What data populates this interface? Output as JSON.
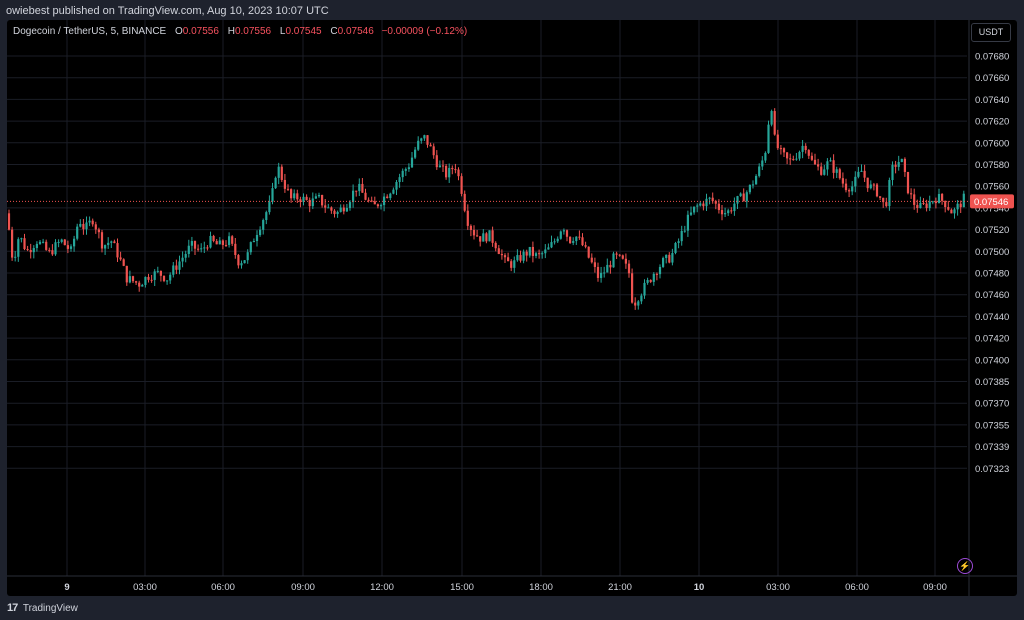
{
  "header": {
    "published": "owiebest published on TradingView.com, Aug 10, 2023 10:07 UTC"
  },
  "legend": {
    "symbol": "Dogecoin / TetherUS, 5, BINANCE",
    "open_label": "O",
    "open": "0.07556",
    "high_label": "H",
    "high": "0.07556",
    "low_label": "L",
    "low": "0.07545",
    "close_label": "C",
    "close": "0.07546",
    "change": "−0.00009 (−0.12%)"
  },
  "currency": "USDT",
  "footer": {
    "brand": "TradingView"
  },
  "chart_data": {
    "type": "candlestick",
    "title": "Dogecoin / TetherUS, 5, BINANCE",
    "last_price": 0.07546,
    "last_price_label": "0.07546",
    "colors": {
      "up": "#26a69a",
      "down": "#ef5350",
      "price_line": "#ef5350",
      "grid": "#1a1d26"
    },
    "y_ticks": [
      "0.07680",
      "0.07660",
      "0.07640",
      "0.07620",
      "0.07600",
      "0.07580",
      "0.07560",
      "0.07540",
      "0.07520",
      "0.07500",
      "0.07480",
      "0.07460",
      "0.07440",
      "0.07420",
      "0.07400",
      "0.07385",
      "0.07370",
      "0.07355",
      "0.07339",
      "0.07323"
    ],
    "x_ticks": [
      {
        "label": "9",
        "bold": true
      },
      {
        "label": "03:00"
      },
      {
        "label": "06:00"
      },
      {
        "label": "09:00"
      },
      {
        "label": "12:00"
      },
      {
        "label": "15:00"
      },
      {
        "label": "18:00"
      },
      {
        "label": "21:00"
      },
      {
        "label": "10",
        "bold": true
      },
      {
        "label": "03:00"
      },
      {
        "label": "06:00"
      },
      {
        "label": "09:00"
      }
    ],
    "price_path": [
      [
        0,
        0.07535
      ],
      [
        6,
        0.0749
      ],
      [
        12,
        0.07515
      ],
      [
        20,
        0.075
      ],
      [
        30,
        0.0751
      ],
      [
        42,
        0.07498
      ],
      [
        54,
        0.0751
      ],
      [
        64,
        0.075
      ],
      [
        72,
        0.0753
      ],
      [
        78,
        0.0752
      ],
      [
        86,
        0.0753
      ],
      [
        96,
        0.07505
      ],
      [
        104,
        0.0751
      ],
      [
        112,
        0.07495
      ],
      [
        120,
        0.07475
      ],
      [
        132,
        0.0747
      ],
      [
        142,
        0.07478
      ],
      [
        152,
        0.0748
      ],
      [
        160,
        0.07475
      ],
      [
        168,
        0.07485
      ],
      [
        176,
        0.07495
      ],
      [
        184,
        0.07505
      ],
      [
        194,
        0.075
      ],
      [
        202,
        0.0751
      ],
      [
        212,
        0.07505
      ],
      [
        222,
        0.0751
      ],
      [
        232,
        0.0749
      ],
      [
        240,
        0.07495
      ],
      [
        248,
        0.07515
      ],
      [
        256,
        0.0753
      ],
      [
        264,
        0.07545
      ],
      [
        270,
        0.0758
      ],
      [
        276,
        0.07565
      ],
      [
        284,
        0.07548
      ],
      [
        292,
        0.0755
      ],
      [
        302,
        0.07545
      ],
      [
        312,
        0.07548
      ],
      [
        320,
        0.0754
      ],
      [
        330,
        0.07535
      ],
      [
        340,
        0.07545
      ],
      [
        350,
        0.0756
      ],
      [
        358,
        0.0755
      ],
      [
        366,
        0.0754
      ],
      [
        372,
        0.07545
      ],
      [
        382,
        0.07555
      ],
      [
        392,
        0.07568
      ],
      [
        402,
        0.0758
      ],
      [
        410,
        0.07598
      ],
      [
        418,
        0.07605
      ],
      [
        426,
        0.0759
      ],
      [
        432,
        0.07578
      ],
      [
        440,
        0.0757
      ],
      [
        448,
        0.0758
      ],
      [
        454,
        0.0756
      ],
      [
        460,
        0.0753
      ],
      [
        466,
        0.07518
      ],
      [
        474,
        0.07512
      ],
      [
        482,
        0.07515
      ],
      [
        490,
        0.07505
      ],
      [
        498,
        0.0749
      ],
      [
        506,
        0.07488
      ],
      [
        514,
        0.07495
      ],
      [
        522,
        0.075
      ],
      [
        530,
        0.07495
      ],
      [
        540,
        0.075
      ],
      [
        548,
        0.0751
      ],
      [
        556,
        0.07525
      ],
      [
        562,
        0.0751
      ],
      [
        568,
        0.07515
      ],
      [
        576,
        0.07505
      ],
      [
        584,
        0.0749
      ],
      [
        592,
        0.07475
      ],
      [
        600,
        0.07485
      ],
      [
        608,
        0.07495
      ],
      [
        616,
        0.0749
      ],
      [
        622,
        0.0748
      ],
      [
        626,
        0.0745
      ],
      [
        632,
        0.0746
      ],
      [
        640,
        0.0747
      ],
      [
        648,
        0.07482
      ],
      [
        656,
        0.0749
      ],
      [
        664,
        0.07495
      ],
      [
        672,
        0.0751
      ],
      [
        680,
        0.07528
      ],
      [
        688,
        0.0754
      ],
      [
        696,
        0.07545
      ],
      [
        704,
        0.07548
      ],
      [
        712,
        0.0754
      ],
      [
        720,
        0.07535
      ],
      [
        728,
        0.07545
      ],
      [
        736,
        0.0755
      ],
      [
        744,
        0.0756
      ],
      [
        752,
        0.07575
      ],
      [
        758,
        0.0759
      ],
      [
        764,
        0.0764
      ],
      [
        768,
        0.076
      ],
      [
        774,
        0.0759
      ],
      [
        782,
        0.07582
      ],
      [
        790,
        0.0759
      ],
      [
        798,
        0.076
      ],
      [
        806,
        0.0758
      ],
      [
        814,
        0.07575
      ],
      [
        822,
        0.07582
      ],
      [
        830,
        0.07572
      ],
      [
        838,
        0.0756
      ],
      [
        846,
        0.0756
      ],
      [
        854,
        0.07575
      ],
      [
        862,
        0.0756
      ],
      [
        870,
        0.07555
      ],
      [
        878,
        0.0754
      ],
      [
        886,
        0.07578
      ],
      [
        894,
        0.07585
      ],
      [
        900,
        0.0756
      ],
      [
        906,
        0.07545
      ],
      [
        914,
        0.0754
      ],
      [
        922,
        0.07545
      ],
      [
        930,
        0.0755
      ],
      [
        938,
        0.07545
      ],
      [
        946,
        0.07535
      ],
      [
        954,
        0.07545
      ],
      [
        960,
        0.07552
      ]
    ]
  }
}
